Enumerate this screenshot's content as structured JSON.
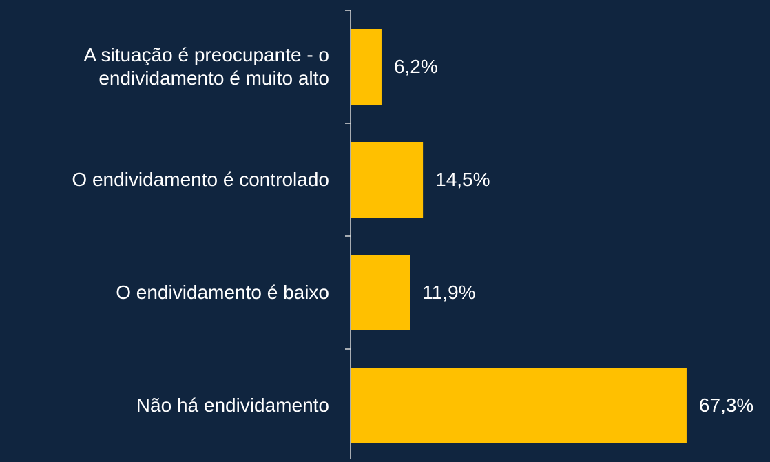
{
  "chart_data": {
    "type": "bar",
    "orientation": "horizontal",
    "categories": [
      "A situação é preocupante - o endividamento é muito alto",
      "O endividamento é controlado",
      "O endividamento é baixo",
      "Não há endividamento"
    ],
    "values": [
      6.2,
      14.5,
      11.9,
      67.3
    ],
    "value_labels": [
      "6,2%",
      "14,5%",
      "11,9%",
      "67,3%"
    ],
    "color": "#ffc000"
  }
}
